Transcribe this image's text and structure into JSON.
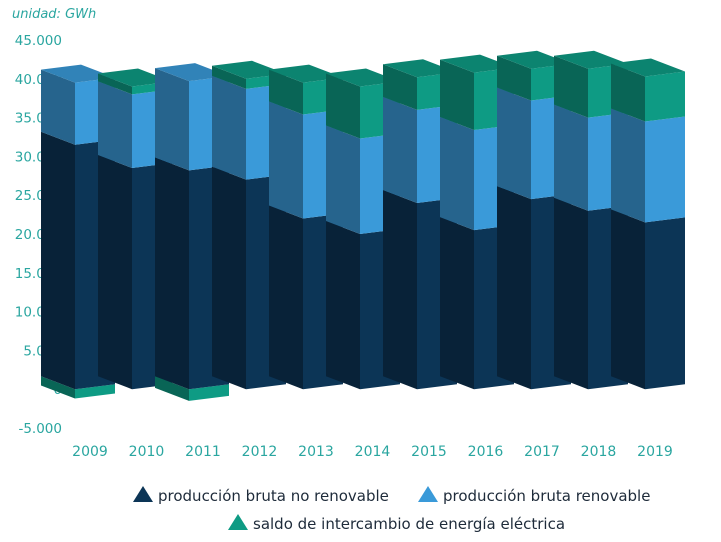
{
  "chart_data": {
    "type": "bar",
    "stacked": true,
    "style": "3d",
    "unit_label": "unidad: GWh",
    "categories": [
      "2009",
      "2010",
      "2011",
      "2012",
      "2013",
      "2014",
      "2015",
      "2016",
      "2017",
      "2018",
      "2019"
    ],
    "y_ticks": [
      "45.000",
      "40.000",
      "35.000",
      "30.000",
      "25.000",
      "20.000",
      "15.000",
      "10.000",
      "5.000",
      "0",
      "-5.000"
    ],
    "ylim": [
      -5000,
      45000
    ],
    "grid": false,
    "legend_position": "bottom",
    "series": [
      {
        "name": "producción bruta no renovable",
        "color": "#0c3556",
        "values": [
          31500,
          28500,
          28200,
          27000,
          22000,
          20000,
          24000,
          20500,
          24500,
          23000,
          21500
        ]
      },
      {
        "name": "producción bruta renovable",
        "color": "#3a9ad9",
        "values": [
          8000,
          9500,
          11500,
          11700,
          13400,
          12300,
          12000,
          12900,
          12700,
          12000,
          13000
        ]
      },
      {
        "name": "saldo de intercambio de energía eléctrica",
        "color": "#0e9b84",
        "values": [
          -1200,
          1000,
          -1500,
          1300,
          4100,
          6700,
          4200,
          7400,
          4100,
          6300,
          5800
        ]
      }
    ]
  }
}
